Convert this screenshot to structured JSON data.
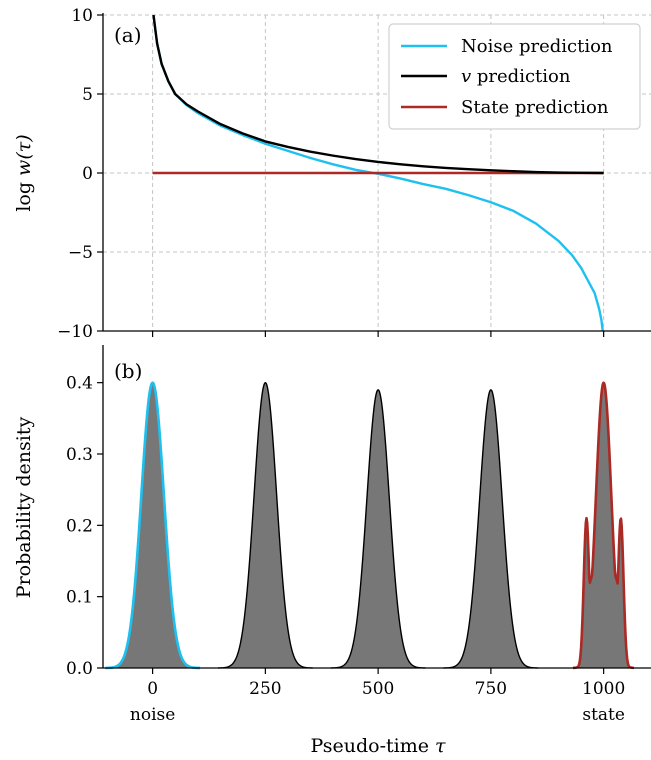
{
  "colors": {
    "noise": "#1ec0f0",
    "v": "#000000",
    "state": "#aa2a25",
    "fill": "#777777",
    "grid": "#c4c4c4"
  },
  "chart_data": [
    {
      "panel": "(a)",
      "type": "line",
      "ylabel": "log w(τ)",
      "xlabel": "",
      "xlim": [
        -110,
        1105
      ],
      "ylim": [
        -10,
        10
      ],
      "x_ticks": [
        0,
        250,
        500,
        750,
        1000
      ],
      "y_ticks": [
        -10,
        -5,
        0,
        5,
        10
      ],
      "y_tick_labels": [
        "−10",
        "−5",
        "0",
        "5",
        "10"
      ],
      "grid": true,
      "legend": {
        "position": "top-right",
        "entries": [
          "Noise prediction",
          "v prediction",
          "State prediction"
        ]
      },
      "series": [
        {
          "name": "Noise prediction",
          "x": [
            2,
            5,
            10,
            20,
            35,
            50,
            75,
            100,
            150,
            200,
            250,
            300,
            350,
            400,
            450,
            500,
            550,
            600,
            650,
            700,
            750,
            800,
            850,
            900,
            930,
            950,
            965,
            980,
            990,
            995,
            998
          ],
          "y": [
            10.0,
            9.3,
            8.2,
            6.9,
            5.8,
            5.0,
            4.3,
            3.8,
            3.0,
            2.4,
            1.85,
            1.4,
            0.95,
            0.55,
            0.2,
            -0.05,
            -0.35,
            -0.7,
            -1.0,
            -1.4,
            -1.85,
            -2.4,
            -3.2,
            -4.3,
            -5.2,
            -6.0,
            -6.8,
            -7.6,
            -8.6,
            -9.3,
            -10.0
          ]
        },
        {
          "name": "v prediction",
          "x": [
            2,
            5,
            10,
            20,
            35,
            50,
            75,
            100,
            150,
            200,
            250,
            300,
            350,
            400,
            450,
            500,
            550,
            600,
            650,
            700,
            750,
            800,
            850,
            900,
            950,
            1000
          ],
          "y": [
            10.0,
            9.3,
            8.2,
            6.9,
            5.8,
            5.0,
            4.35,
            3.9,
            3.1,
            2.5,
            2.0,
            1.65,
            1.35,
            1.1,
            0.88,
            0.7,
            0.55,
            0.42,
            0.32,
            0.24,
            0.17,
            0.11,
            0.06,
            0.03,
            0.01,
            0.0
          ]
        },
        {
          "name": "State prediction",
          "x": [
            0,
            1000
          ],
          "y": [
            0,
            0
          ]
        }
      ]
    },
    {
      "panel": "(b)",
      "type": "area",
      "ylabel": "Probability density",
      "xlabel": "Pseudo-time τ",
      "xlim": [
        -110,
        1105
      ],
      "ylim": [
        0,
        0.45
      ],
      "x_ticks": [
        0,
        250,
        500,
        750,
        1000
      ],
      "x_tick_labels": [
        "0",
        "250",
        "500",
        "750",
        "1000"
      ],
      "x_tick_sublabels": {
        "0": "noise",
        "1000": "state"
      },
      "y_ticks": [
        0.0,
        0.1,
        0.2,
        0.3,
        0.4
      ],
      "y_tick_labels": [
        "0.0",
        "0.1",
        "0.2",
        "0.3",
        "0.4"
      ],
      "grid": false,
      "density_scale_sigma": 25,
      "distributions": [
        {
          "kind": "gaussian",
          "mean": 0,
          "peak": 0.4,
          "outline": "noise"
        },
        {
          "kind": "gaussian",
          "mean": 250,
          "peak": 0.4,
          "outline": "v"
        },
        {
          "kind": "gaussian",
          "mean": 500,
          "peak": 0.39,
          "outline": "v"
        },
        {
          "kind": "gaussian",
          "mean": 750,
          "peak": 0.39,
          "outline": "v"
        },
        {
          "kind": "multimodal",
          "center": 1000,
          "peak": 0.4,
          "side_peak_offset": 38,
          "side_peak_height": 0.21,
          "outline": "state"
        }
      ]
    }
  ]
}
